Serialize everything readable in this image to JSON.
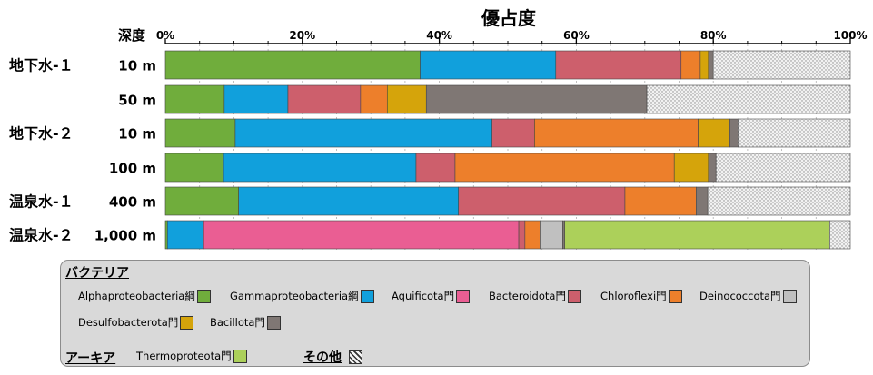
{
  "chart_data": {
    "type": "bar",
    "orientation": "horizontal",
    "stacked": true,
    "title": "優占度",
    "row_header": "深度",
    "x_ticks": [
      "0%",
      "20%",
      "40%",
      "60%",
      "80%",
      "100%"
    ],
    "xlim": [
      0,
      100
    ],
    "grid": true,
    "groups": [
      "地下水-１",
      "",
      "地下水-２",
      "",
      "温泉水-１",
      "温泉水-２"
    ],
    "categories": [
      "10 m",
      "50 m",
      "10 m",
      "100 m",
      "400 m",
      "1,000 m"
    ],
    "series": [
      {
        "name": "Alphaproteobacteria綱",
        "values": [
          37.2,
          8.6,
          10.2,
          8.5,
          10.7,
          0.3
        ]
      },
      {
        "name": "Gammaproteobacteria綱",
        "values": [
          19.8,
          9.3,
          37.5,
          28.1,
          32.1,
          5.3
        ]
      },
      {
        "name": "Aquificota門",
        "values": [
          0,
          0,
          0,
          0,
          0,
          46.0
        ]
      },
      {
        "name": "Bacteroidota門",
        "values": [
          18.3,
          10.6,
          6.2,
          5.7,
          24.3,
          0.9
        ]
      },
      {
        "name": "Chloroflexi門",
        "values": [
          2.8,
          3.9,
          23.9,
          32.0,
          10.4,
          2.2
        ]
      },
      {
        "name": "Deinococcota門",
        "values": [
          0,
          0,
          0,
          0,
          0,
          3.3
        ]
      },
      {
        "name": "Desulfobacterota門",
        "values": [
          1.2,
          5.7,
          4.6,
          5.0,
          0,
          0
        ]
      },
      {
        "name": "Bacillota門",
        "values": [
          0.7,
          32.2,
          1.2,
          1.1,
          1.7,
          0.3
        ]
      },
      {
        "name": "Thermoproteota門",
        "values": [
          0,
          0,
          0,
          0,
          0,
          38.7
        ]
      },
      {
        "name": "その他",
        "values": [
          20.0,
          29.7,
          16.4,
          19.6,
          20.8,
          3.0
        ]
      }
    ]
  },
  "colors": {
    "Alphaproteobacteria綱": "#70ad3c",
    "Gammaproteobacteria綱": "#11a0dc",
    "Aquificota門": "#ea5e93",
    "Bacteroidota門": "#cd5f6c",
    "Chloroflexi門": "#ed7f2b",
    "Deinococcota門": "#c0c0c0",
    "Desulfobacterota門": "#d5a40b",
    "Bacillota門": "#7f7774",
    "Thermoproteota門": "#acd05a",
    "その他": "pattern"
  },
  "legend": {
    "bacteria_header": "バクテリア",
    "archaea_header": "アーキア",
    "other_label": "その他",
    "items": [
      {
        "label": "Alphaproteobacteria綱",
        "color": "#70ad3c"
      },
      {
        "label": "Gammaproteobacteria綱",
        "color": "#11a0dc"
      },
      {
        "label": "Aquificota門",
        "color": "#ea5e93"
      },
      {
        "label": "Bacteroidota門",
        "color": "#cd5f6c"
      },
      {
        "label": "Chloroflexi門",
        "color": "#ed7f2b"
      },
      {
        "label": "Deinococcota門",
        "color": "#c0c0c0"
      },
      {
        "label": "Desulfobacterota門",
        "color": "#d5a40b"
      },
      {
        "label": "Bacillota門",
        "color": "#7f7774"
      },
      {
        "label": "Thermoproteota門",
        "color": "#acd05a"
      }
    ]
  }
}
